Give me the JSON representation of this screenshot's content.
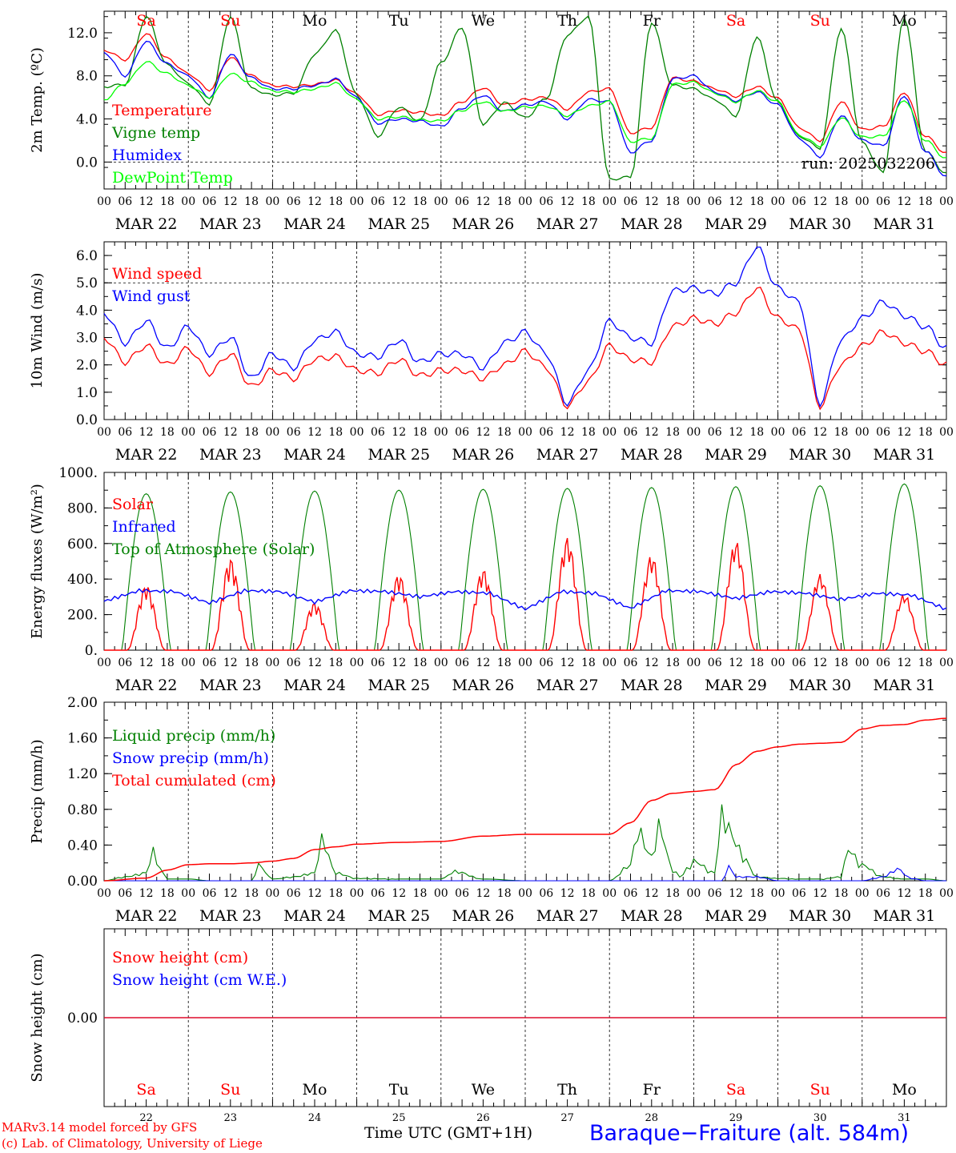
{
  "station": "Baraque−Fraiture (alt. 584m)",
  "credits": [
    "MARv3.14 model forced by GFS",
    "(c) Lab. of Climatology, University of Liege"
  ],
  "xaxis_title": "Time UTC (GMT+1H)",
  "colors": {
    "red": "#ff0000",
    "green": "#008000",
    "blue": "#0000ff",
    "lightgreen": "#00ff00",
    "weekend": "#ff0000",
    "weekday": "#000000"
  },
  "chart_data": {
    "type": "line",
    "run": "run: 2025032206",
    "days": [
      "MAR 22",
      "MAR 23",
      "MAR 24",
      "MAR 25",
      "MAR 26",
      "MAR 27",
      "MAR 28",
      "MAR 29",
      "MAR 30",
      "MAR 31"
    ],
    "day_numbers": [
      "22",
      "23",
      "24",
      "25",
      "26",
      "27",
      "28",
      "29",
      "30",
      "31"
    ],
    "weekdays": [
      "Sa",
      "Su",
      "Mo",
      "Tu",
      "We",
      "Th",
      "Fr",
      "Sa",
      "Su",
      "Mo"
    ],
    "weekend": [
      true,
      true,
      false,
      false,
      false,
      false,
      false,
      true,
      true,
      false
    ],
    "hour_ticks": [
      "00",
      "06",
      "12",
      "18"
    ],
    "panels": [
      {
        "ylabel": "2m Temp. (ºC)",
        "ylim": [
          -2.5,
          14
        ],
        "yticks": [
          0,
          4,
          8,
          12
        ],
        "ytick_labels": [
          "0.0",
          "4.0",
          "8.0",
          "12.0"
        ],
        "ref_line": 0,
        "x": [
          0,
          6,
          12,
          18,
          24,
          30,
          36,
          42,
          48,
          54,
          60,
          66,
          72,
          78,
          84,
          90,
          96,
          102,
          108,
          114,
          120,
          126,
          132,
          138,
          144,
          150,
          156,
          162,
          168,
          174,
          180,
          186,
          192,
          198,
          204,
          210,
          216,
          222,
          228,
          234,
          240
        ],
        "series": [
          {
            "name": "Temperature",
            "color": "red",
            "values": [
              10.4,
              9.5,
              11.9,
              9.6,
              8.2,
              6.7,
              9.7,
              8.0,
              7.1,
              7.0,
              7.2,
              7.6,
              6.3,
              4.4,
              4.8,
              4.6,
              4.3,
              5.6,
              6.9,
              5.3,
              5.8,
              6.0,
              4.9,
              6.5,
              6.8,
              2.7,
              3.2,
              7.8,
              7.5,
              6.8,
              6.1,
              7.0,
              5.9,
              3.2,
              2.0,
              5.6,
              3.0,
              3.3,
              6.5,
              2.4,
              0.8
            ]
          },
          {
            "name": "Vigne temp",
            "color": "green",
            "values": [
              7.0,
              7.2,
              13.5,
              9.0,
              7.3,
              5.4,
              13.5,
              6.8,
              6.2,
              6.4,
              10.0,
              12.2,
              6.2,
              2.4,
              5.1,
              3.8,
              9.2,
              12.5,
              3.5,
              5.5,
              4.1,
              5.9,
              11.8,
              13.5,
              -1.6,
              -1.4,
              13.0,
              7.1,
              6.8,
              5.8,
              4.3,
              11.6,
              5.5,
              2.4,
              1.3,
              12.4,
              1.8,
              -1.0,
              13.5,
              1.0,
              -1.1
            ]
          },
          {
            "name": "Humidex",
            "color": "blue",
            "values": [
              10.2,
              8.0,
              11.2,
              9.1,
              8.0,
              6.0,
              10.0,
              7.8,
              6.8,
              6.8,
              7.1,
              7.7,
              6.0,
              3.6,
              4.0,
              3.8,
              3.3,
              5.0,
              6.2,
              4.7,
              5.3,
              5.6,
              4.0,
              5.8,
              5.6,
              0.9,
              2.0,
              7.7,
              8.0,
              6.5,
              5.7,
              6.5,
              5.3,
              2.2,
              0.5,
              4.3,
              2.0,
              1.5,
              6.2,
              1.0,
              -1.4
            ]
          },
          {
            "name": "DewPoint Temp",
            "color": "lightgreen",
            "values": [
              5.8,
              7.3,
              9.3,
              8.2,
              7.1,
              6.0,
              8.2,
              7.4,
              6.6,
              6.5,
              6.8,
              7.3,
              5.8,
              4.0,
              4.2,
              3.9,
              3.8,
              4.8,
              5.6,
              4.7,
              5.1,
              5.2,
              4.3,
              5.2,
              5.6,
              1.9,
              2.2,
              7.2,
              7.4,
              6.4,
              5.6,
              6.6,
              5.6,
              2.5,
              1.5,
              4.1,
              2.3,
              2.4,
              5.8,
              2.0,
              0.3
            ]
          }
        ],
        "legend": [
          "Temperature",
          "Vigne temp",
          "Humidex",
          "DewPoint Temp"
        ]
      },
      {
        "ylabel": "10m Wind (m/s)",
        "ylim": [
          0,
          6.5
        ],
        "yticks": [
          0,
          1,
          2,
          3,
          4,
          5,
          6
        ],
        "ytick_labels": [
          "0.0",
          "1.0",
          "2.0",
          "3.0",
          "4.0",
          "5.0",
          "6.0"
        ],
        "ref_line": 5,
        "x": [
          0,
          6,
          12,
          18,
          24,
          30,
          36,
          42,
          48,
          54,
          60,
          66,
          72,
          78,
          84,
          90,
          96,
          102,
          108,
          114,
          120,
          126,
          132,
          138,
          144,
          150,
          156,
          162,
          168,
          174,
          180,
          186,
          192,
          198,
          204,
          210,
          216,
          222,
          228,
          234,
          240
        ],
        "series": [
          {
            "name": "Wind speed",
            "color": "red",
            "values": [
              3.0,
              2.1,
              2.7,
              2.0,
              2.6,
              1.7,
              2.4,
              1.2,
              1.8,
              1.5,
              2.2,
              2.3,
              1.8,
              1.7,
              2.2,
              1.6,
              1.8,
              1.8,
              1.5,
              2.0,
              2.5,
              1.9,
              0.5,
              1.4,
              2.7,
              2.2,
              2.1,
              3.4,
              3.7,
              3.5,
              3.9,
              4.8,
              3.7,
              3.3,
              0.5,
              2.0,
              2.7,
              3.2,
              2.8,
              2.5,
              2.0
            ]
          },
          {
            "name": "Wind gust",
            "color": "blue",
            "values": [
              3.9,
              2.8,
              3.6,
              2.6,
              3.4,
              2.4,
              3.0,
              1.5,
              2.4,
              1.9,
              2.9,
              3.2,
              2.4,
              2.3,
              2.9,
              2.1,
              2.4,
              2.4,
              1.9,
              2.8,
              3.2,
              2.4,
              0.6,
              1.8,
              3.6,
              3.0,
              2.8,
              4.7,
              4.8,
              4.6,
              5.0,
              6.3,
              4.8,
              4.3,
              0.6,
              2.9,
              3.7,
              4.3,
              3.8,
              3.4,
              2.6
            ]
          }
        ],
        "legend": [
          "Wind speed",
          "Wind gust"
        ]
      },
      {
        "ylabel": "Energy fluxes (W/m²)",
        "ylim": [
          0,
          1000
        ],
        "yticks": [
          0,
          200,
          400,
          600,
          800,
          1000
        ],
        "ytick_labels": [
          "0.",
          "200.",
          "400.",
          "600.",
          "800.",
          "1000."
        ],
        "solar_peaks": [
          370,
          520,
          270,
          430,
          460,
          640,
          540,
          620,
          430,
          320
        ],
        "toa_peaks": [
          880,
          890,
          895,
          900,
          905,
          910,
          915,
          920,
          925,
          935
        ],
        "infrared_values": [
          275,
          335,
          330,
          265,
          335,
          330,
          270,
          335,
          330,
          300,
          330,
          320,
          230,
          330,
          320,
          235,
          335,
          330,
          290,
          330,
          320,
          285,
          320,
          310,
          230
        ],
        "legend": [
          "Solar",
          "Infrared",
          "Top of Atmosphere (Solar)"
        ],
        "series_colors": {
          "Solar": "red",
          "Infrared": "blue",
          "Top of Atmosphere (Solar)": "green"
        }
      },
      {
        "ylabel": "Precip (mm/h)",
        "ylim": [
          0,
          2.0
        ],
        "yticks": [
          0,
          0.4,
          0.8,
          1.2,
          1.6,
          2.0
        ],
        "ytick_labels": [
          "0.00",
          "0.40",
          "0.80",
          "1.20",
          "1.60",
          "2.00"
        ],
        "cumulated": {
          "name": "Total cumulated (cm)",
          "color": "red",
          "x": [
            0,
            12,
            18,
            24,
            30,
            36,
            42,
            48,
            54,
            60,
            66,
            72,
            84,
            96,
            108,
            120,
            132,
            144,
            150,
            156,
            162,
            168,
            174,
            180,
            186,
            192,
            198,
            204,
            210,
            216,
            222,
            228,
            234,
            240
          ],
          "values": [
            0,
            0.03,
            0.12,
            0.18,
            0.19,
            0.19,
            0.2,
            0.22,
            0.25,
            0.35,
            0.38,
            0.41,
            0.43,
            0.44,
            0.5,
            0.52,
            0.52,
            0.52,
            0.65,
            0.9,
            0.98,
            1.0,
            1.02,
            1.3,
            1.45,
            1.5,
            1.53,
            1.54,
            1.55,
            1.7,
            1.74,
            1.75,
            1.8,
            1.82
          ]
        },
        "liquid": {
          "name": "Liquid precip (mm/h)",
          "color": "green",
          "x": [
            0,
            6,
            12,
            14,
            16,
            18,
            24,
            30,
            36,
            42,
            44,
            48,
            54,
            60,
            62,
            66,
            72,
            84,
            96,
            100,
            108,
            120,
            132,
            144,
            150,
            152,
            156,
            158,
            162,
            164,
            168,
            174,
            176,
            180,
            182,
            186,
            192,
            198,
            204,
            210,
            212,
            216,
            222,
            228,
            234,
            240
          ],
          "values": [
            0,
            0.05,
            0.1,
            0.38,
            0.15,
            0.02,
            0.02,
            0,
            0,
            0,
            0.2,
            0.02,
            0.05,
            0.1,
            0.53,
            0.1,
            0.03,
            0.02,
            0.02,
            0.12,
            0.02,
            0,
            0,
            0,
            0.2,
            0.65,
            0.3,
            0.7,
            0.15,
            0.05,
            0.25,
            0.1,
            0.86,
            0.5,
            0.3,
            0.05,
            0.03,
            0.02,
            0.02,
            0.05,
            0.4,
            0.2,
            0.05,
            0.02,
            0.02,
            0
          ]
        },
        "snow": {
          "name": "Snow precip (mm/h)",
          "color": "blue",
          "x": [
            0,
            168,
            176,
            178,
            180,
            186,
            192,
            216,
            222,
            226,
            230,
            234,
            240
          ],
          "values": [
            0,
            0,
            0,
            0.18,
            0.05,
            0.05,
            0,
            0,
            0.05,
            0.15,
            0.03,
            0,
            0
          ]
        },
        "legend": [
          "Liquid precip (mm/h)",
          "Snow precip (mm/h)",
          "Total cumulated (cm)"
        ]
      },
      {
        "ylabel": "Snow height (cm)",
        "ylim": [
          -1,
          1
        ],
        "yticks": [
          0
        ],
        "ytick_labels": [
          "0.00"
        ],
        "series": [
          {
            "name": "Snow height (cm)",
            "color": "red",
            "values": [
              0,
              0
            ]
          },
          {
            "name": "Snow height (cm W.E.)",
            "color": "blue",
            "values": [
              0,
              0
            ]
          }
        ],
        "legend": [
          "Snow height (cm)",
          "Snow height (cm W.E.)"
        ]
      }
    ]
  }
}
